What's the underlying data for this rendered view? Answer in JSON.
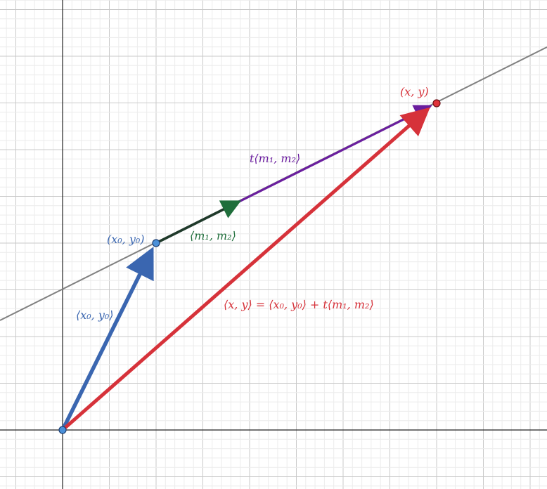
{
  "diagram": {
    "colors": {
      "background": "#ffffff",
      "minor_grid": "#ececec",
      "major_grid": "#c9c9c9",
      "axis": "#222222",
      "line": "#808080",
      "blue": "#3a66b0",
      "green": "#1f6e3b",
      "purple": "#6a1e9e",
      "red": "#d6323a"
    },
    "labels": {
      "point_xy": "(x, y)",
      "point_x0y0": "(x₀, y₀)",
      "vec_t_m": "t⟨m₁, m₂⟩",
      "vec_m": "⟨m₁, m₂⟩",
      "vec_x0y0": "⟨x₀, y₀⟩",
      "equation": "⟨x, y⟩ = ⟨x₀, y₀⟩ + t⟨m₁, m₂⟩"
    },
    "points": {
      "origin": [
        0,
        0
      ],
      "p0": [
        2,
        4
      ],
      "p0_plus_m": [
        4,
        5
      ],
      "p": [
        8,
        7
      ]
    },
    "line": {
      "slope": 0.5,
      "intercept": 3
    }
  }
}
